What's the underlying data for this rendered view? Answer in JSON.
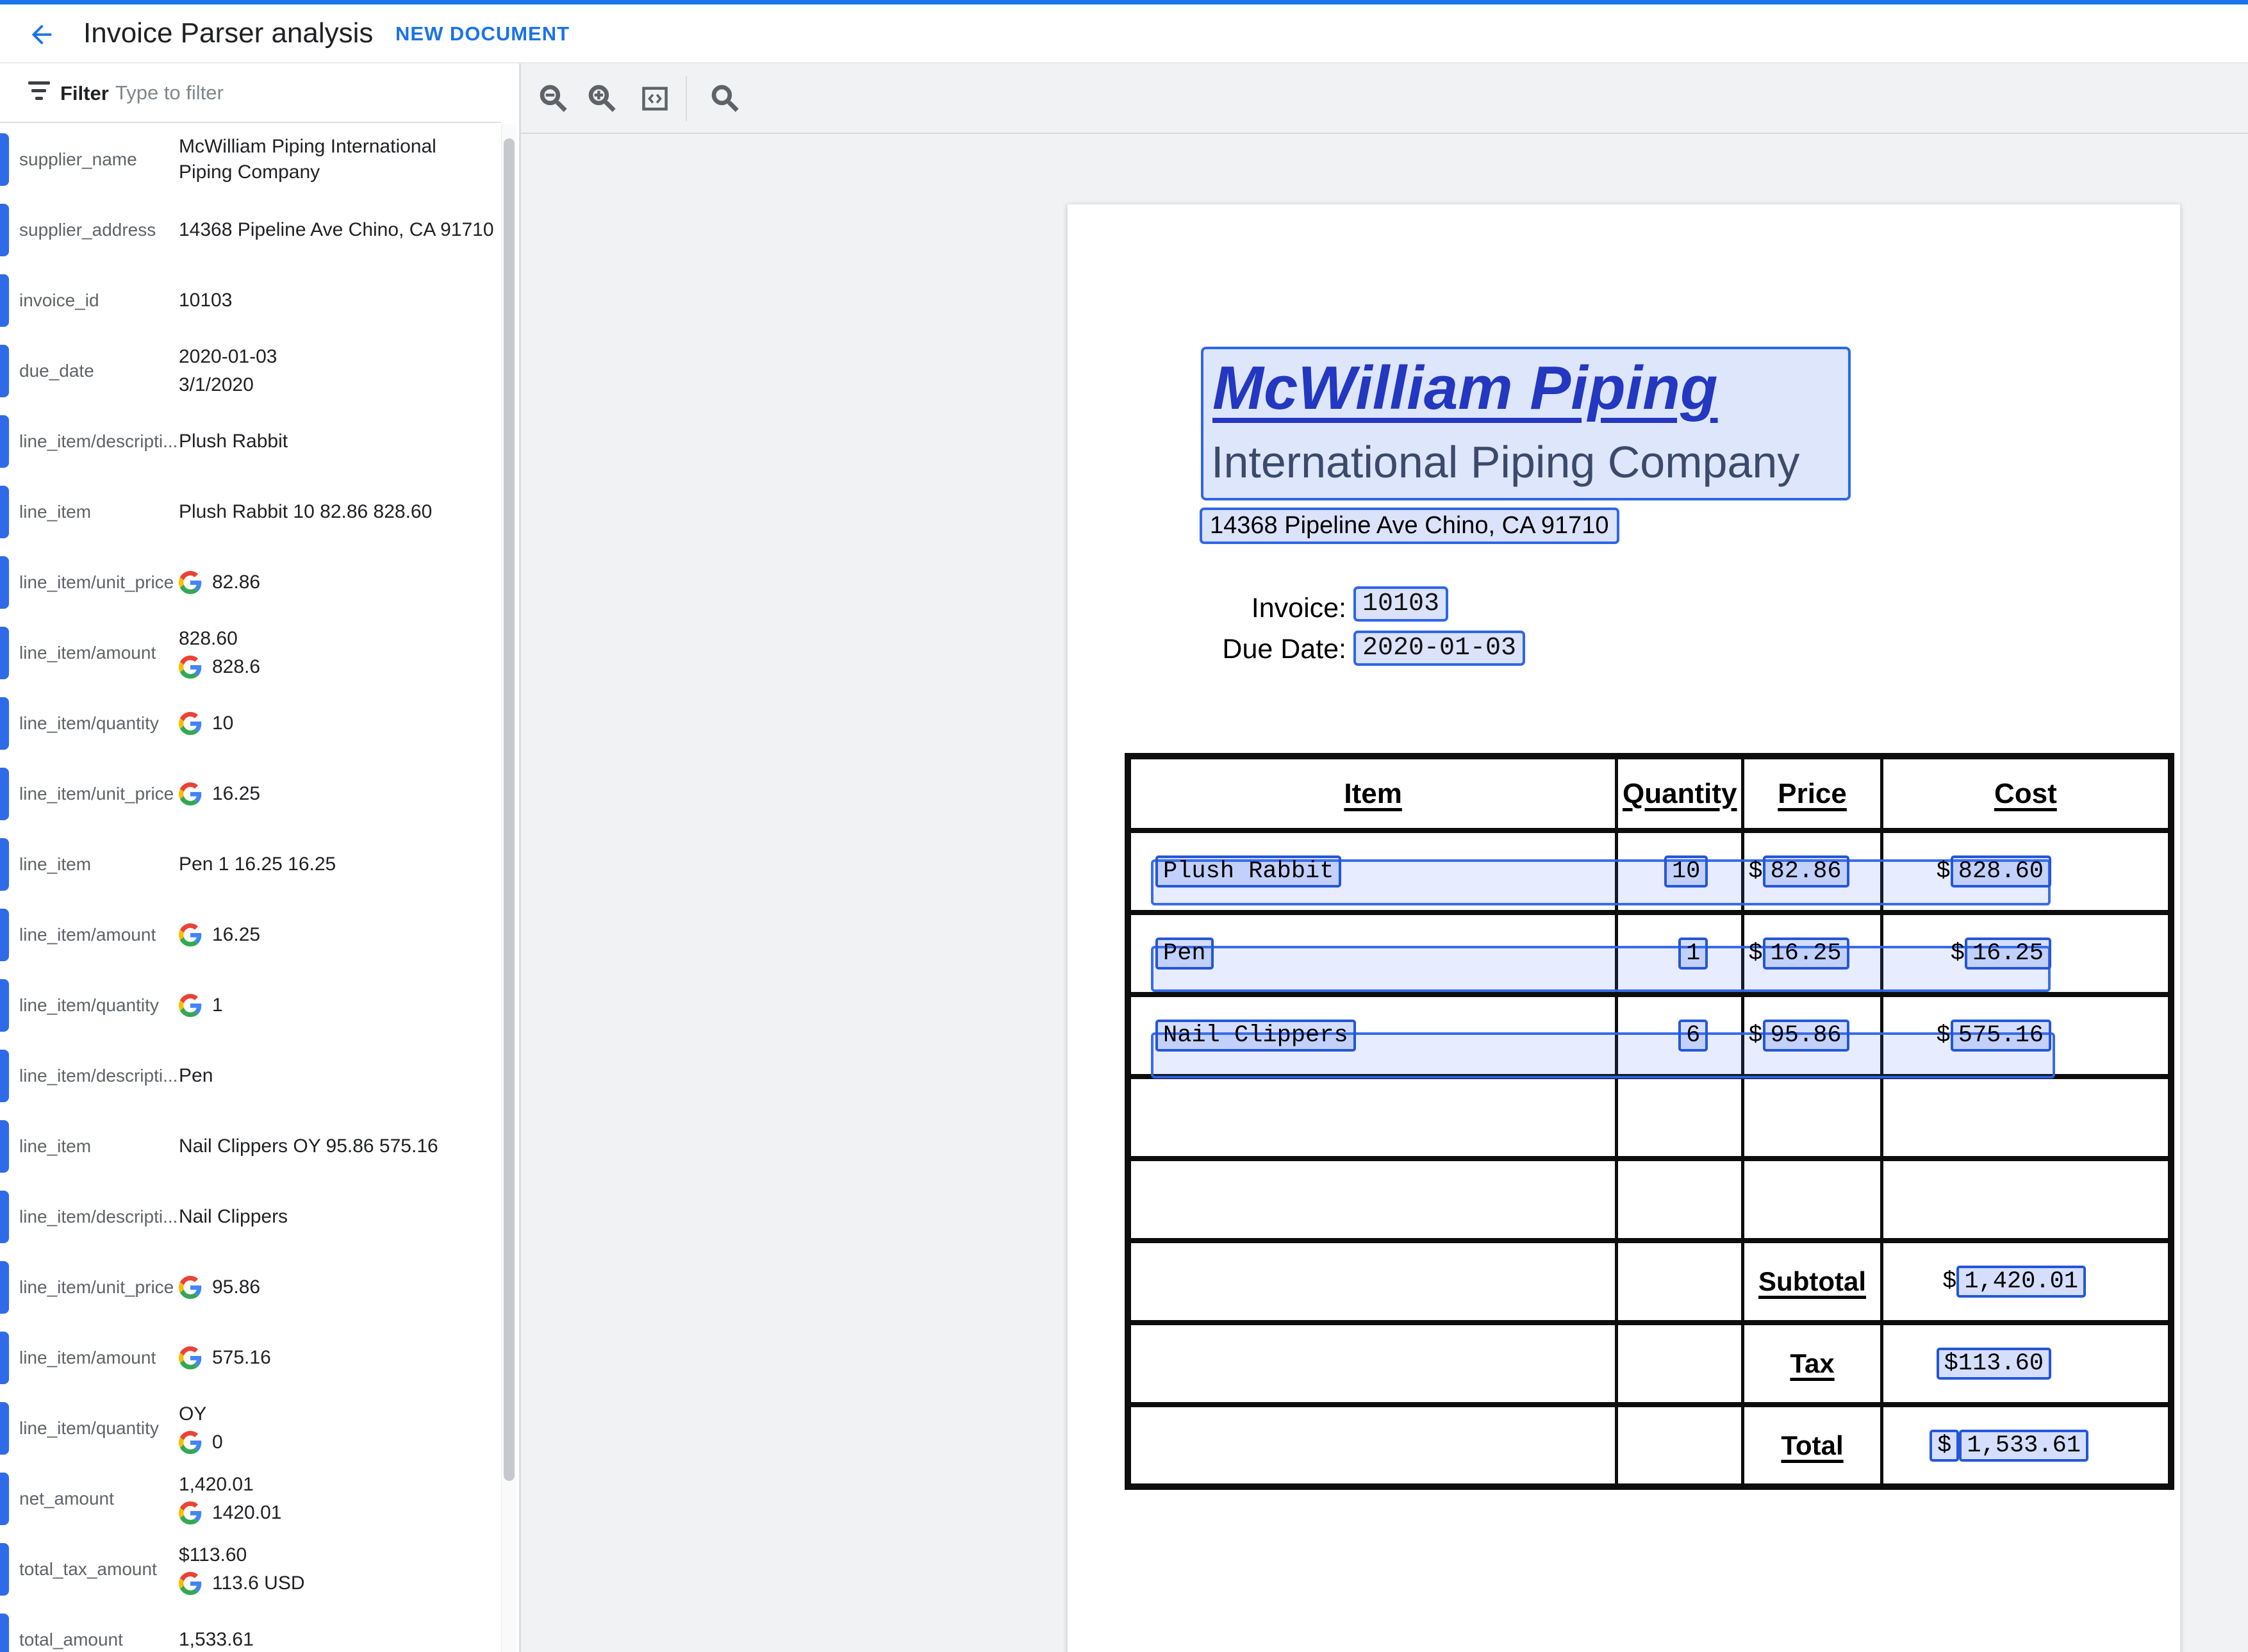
{
  "header": {
    "title": "Invoice Parser analysis",
    "new_document_label": "NEW DOCUMENT",
    "back_icon": "arrow-back"
  },
  "sidebar": {
    "filter_label": "Filter",
    "filter_placeholder": "Type to filter",
    "fields": [
      {
        "label": "supplier_name",
        "values": [
          {
            "text": "McWilliam Piping International Piping Company"
          }
        ]
      },
      {
        "label": "supplier_address",
        "values": [
          {
            "text": "14368 Pipeline Ave Chino, CA 91710"
          }
        ]
      },
      {
        "label": "invoice_id",
        "values": [
          {
            "text": "10103"
          }
        ]
      },
      {
        "label": "due_date",
        "values": [
          {
            "text": "2020-01-03"
          },
          {
            "text": "3/1/2020"
          }
        ]
      },
      {
        "label": "line_item/descripti...",
        "values": [
          {
            "text": "Plush Rabbit"
          }
        ]
      },
      {
        "label": "line_item",
        "values": [
          {
            "text": "Plush Rabbit 10 82.86 828.60"
          }
        ]
      },
      {
        "label": "line_item/unit_price",
        "values": [
          {
            "text": "82.86",
            "google": true
          }
        ]
      },
      {
        "label": "line_item/amount",
        "values": [
          {
            "text": "828.60"
          },
          {
            "text": "828.6",
            "google": true
          }
        ]
      },
      {
        "label": "line_item/quantity",
        "values": [
          {
            "text": "10",
            "google": true
          }
        ]
      },
      {
        "label": "line_item/unit_price",
        "values": [
          {
            "text": "16.25",
            "google": true
          }
        ]
      },
      {
        "label": "line_item",
        "values": [
          {
            "text": "Pen 1 16.25 16.25"
          }
        ]
      },
      {
        "label": "line_item/amount",
        "values": [
          {
            "text": "16.25",
            "google": true
          }
        ]
      },
      {
        "label": "line_item/quantity",
        "values": [
          {
            "text": "1",
            "google": true
          }
        ]
      },
      {
        "label": "line_item/descripti...",
        "values": [
          {
            "text": "Pen"
          }
        ]
      },
      {
        "label": "line_item",
        "values": [
          {
            "text": "Nail Clippers OY 95.86 575.16"
          }
        ]
      },
      {
        "label": "line_item/descripti...",
        "values": [
          {
            "text": "Nail Clippers"
          }
        ]
      },
      {
        "label": "line_item/unit_price",
        "values": [
          {
            "text": "95.86",
            "google": true
          }
        ]
      },
      {
        "label": "line_item/amount",
        "values": [
          {
            "text": "575.16",
            "google": true
          }
        ]
      },
      {
        "label": "line_item/quantity",
        "values": [
          {
            "text": "OY"
          },
          {
            "text": "0",
            "google": true
          }
        ]
      },
      {
        "label": "net_amount",
        "values": [
          {
            "text": "1,420.01"
          },
          {
            "text": "1420.01",
            "google": true
          }
        ]
      },
      {
        "label": "total_tax_amount",
        "values": [
          {
            "text": "$113.60"
          },
          {
            "text": "113.6 USD",
            "google": true
          }
        ]
      },
      {
        "label": "total_amount",
        "values": [
          {
            "text": "1,533.61"
          }
        ]
      }
    ]
  },
  "toolbar": {
    "icons": [
      "zoom-out",
      "zoom-in",
      "code-view",
      "search"
    ]
  },
  "document": {
    "logo_title": "McWilliam Piping",
    "logo_subtitle": "International Piping Company",
    "address": "14368 Pipeline Ave Chino, CA 91710",
    "invoice_label": "Invoice:",
    "invoice_value": "10103",
    "due_date_label": "Due Date:",
    "due_date_value": "2020-01-03",
    "table": {
      "headers": [
        "Item",
        "Quantity",
        "Price",
        "Cost"
      ],
      "currency": "$",
      "rows": [
        {
          "item": "Plush Rabbit",
          "qty": "10",
          "price": "82.86",
          "cost": "828.60"
        },
        {
          "item": "Pen",
          "qty": "1",
          "price": "16.25",
          "cost": "16.25"
        },
        {
          "item": "Nail Clippers",
          "qty": "6",
          "price": "95.86",
          "cost": "575.16"
        }
      ],
      "empty_row_count": 2,
      "summary": [
        {
          "label": "Subtotal",
          "value": "1,420.01",
          "dollar_style": "outside"
        },
        {
          "label": "Tax",
          "value": "113.60",
          "dollar_style": "inside"
        },
        {
          "label": "Total",
          "value": "1,533.61",
          "dollar_style": "chip"
        }
      ]
    }
  },
  "colors": {
    "accent_blue": "#1a73e8",
    "highlight_border": "#2e66e8",
    "logo_blue": "#2337c0",
    "logo_subtitle": "#3b4a6b"
  }
}
